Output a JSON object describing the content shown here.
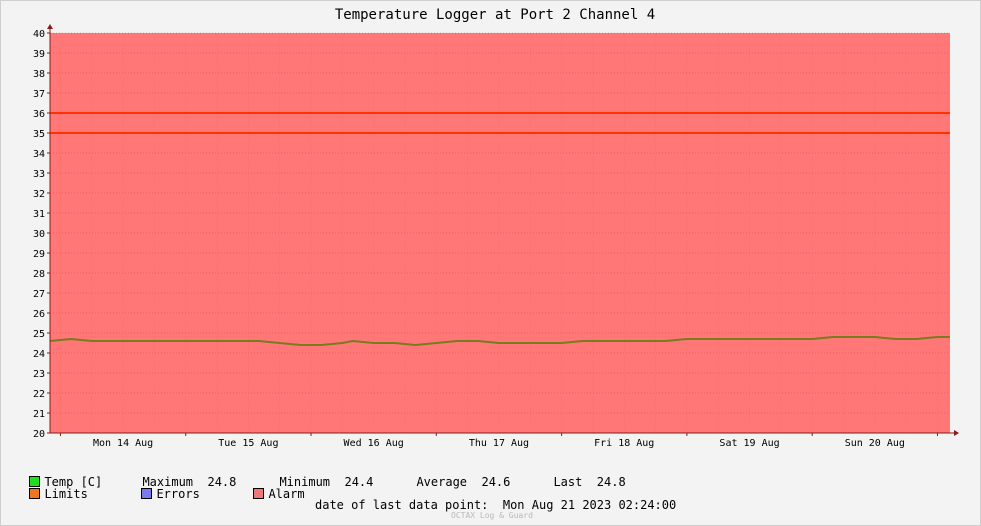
{
  "chart_data": {
    "type": "line",
    "title": "Temperature Logger at Port 2 Channel 4",
    "xlabel": "",
    "ylabel": "",
    "ylim": [
      20,
      40
    ],
    "yticks": [
      "20",
      "21",
      "22",
      "23",
      "24",
      "25",
      "26",
      "27",
      "28",
      "29",
      "30",
      "31",
      "32",
      "33",
      "34",
      "35",
      "36",
      "37",
      "38",
      "39",
      "40"
    ],
    "x_range": [
      "2023-08-13T22:00",
      "2023-08-21T02:24"
    ],
    "x_tick_labels": [
      {
        "label": "Mon 14 Aug",
        "date": "2023-08-14T12:00"
      },
      {
        "label": "Tue 15 Aug",
        "date": "2023-08-15T12:00"
      },
      {
        "label": "Wed 16 Aug",
        "date": "2023-08-16T12:00"
      },
      {
        "label": "Thu 17 Aug",
        "date": "2023-08-17T12:00"
      },
      {
        "label": "Fri 18 Aug",
        "date": "2023-08-18T12:00"
      },
      {
        "label": "Sat 19 Aug",
        "date": "2023-08-19T12:00"
      },
      {
        "label": "Sun 20 Aug",
        "date": "2023-08-20T12:00"
      }
    ],
    "grid": true,
    "series": [
      {
        "name": "Temp [C]",
        "color": "#7a7a1e",
        "points": [
          [
            "2023-08-13T22:00",
            24.6
          ],
          [
            "2023-08-14T02:00",
            24.7
          ],
          [
            "2023-08-14T06:00",
            24.6
          ],
          [
            "2023-08-14T10:00",
            24.6
          ],
          [
            "2023-08-14T14:00",
            24.6
          ],
          [
            "2023-08-14T18:00",
            24.6
          ],
          [
            "2023-08-14T22:00",
            24.6
          ],
          [
            "2023-08-15T02:00",
            24.6
          ],
          [
            "2023-08-15T06:00",
            24.6
          ],
          [
            "2023-08-15T10:00",
            24.6
          ],
          [
            "2023-08-15T14:00",
            24.6
          ],
          [
            "2023-08-15T18:00",
            24.5
          ],
          [
            "2023-08-15T22:00",
            24.4
          ],
          [
            "2023-08-16T02:00",
            24.4
          ],
          [
            "2023-08-16T06:00",
            24.5
          ],
          [
            "2023-08-16T08:00",
            24.6
          ],
          [
            "2023-08-16T12:00",
            24.5
          ],
          [
            "2023-08-16T16:00",
            24.5
          ],
          [
            "2023-08-16T20:00",
            24.4
          ],
          [
            "2023-08-17T00:00",
            24.5
          ],
          [
            "2023-08-17T04:00",
            24.6
          ],
          [
            "2023-08-17T08:00",
            24.6
          ],
          [
            "2023-08-17T12:00",
            24.5
          ],
          [
            "2023-08-17T16:00",
            24.5
          ],
          [
            "2023-08-17T20:00",
            24.5
          ],
          [
            "2023-08-18T00:00",
            24.5
          ],
          [
            "2023-08-18T04:00",
            24.6
          ],
          [
            "2023-08-18T08:00",
            24.6
          ],
          [
            "2023-08-18T12:00",
            24.6
          ],
          [
            "2023-08-18T16:00",
            24.6
          ],
          [
            "2023-08-18T20:00",
            24.6
          ],
          [
            "2023-08-19T00:00",
            24.7
          ],
          [
            "2023-08-19T04:00",
            24.7
          ],
          [
            "2023-08-19T08:00",
            24.7
          ],
          [
            "2023-08-19T12:00",
            24.7
          ],
          [
            "2023-08-19T16:00",
            24.7
          ],
          [
            "2023-08-19T20:00",
            24.7
          ],
          [
            "2023-08-20T00:00",
            24.7
          ],
          [
            "2023-08-20T04:00",
            24.8
          ],
          [
            "2023-08-20T08:00",
            24.8
          ],
          [
            "2023-08-20T12:00",
            24.8
          ],
          [
            "2023-08-20T16:00",
            24.7
          ],
          [
            "2023-08-20T20:00",
            24.7
          ],
          [
            "2023-08-21T00:00",
            24.8
          ],
          [
            "2023-08-21T02:24",
            24.8
          ]
        ]
      }
    ],
    "limits": [
      36,
      35
    ],
    "colors": {
      "alarm_area": "#ff7777",
      "limit_line": "#ff3300",
      "grid_major": "#cc4444",
      "grid_minor": "#ee6666",
      "axis": "#8b1a1a"
    }
  },
  "legend": {
    "row1": [
      {
        "swatch": "#22dd22",
        "text": "Temp [C]"
      },
      {
        "text": "Maximum  24.8"
      },
      {
        "text": "Minimum  24.4"
      },
      {
        "text": "Average  24.6"
      },
      {
        "text": "Last  24.8"
      }
    ],
    "row2": [
      {
        "swatch": "#ee7722",
        "text": "Limits"
      },
      {
        "swatch": "#7a7aee",
        "text": "Errors"
      },
      {
        "swatch": "#ee7777",
        "text": "Alarm"
      }
    ]
  },
  "footer": {
    "last_data_label": "date of last data point:",
    "last_data_value": "Mon Aug 21 2023 02:24:00",
    "watermark": "OCTAX Log & Guard"
  }
}
